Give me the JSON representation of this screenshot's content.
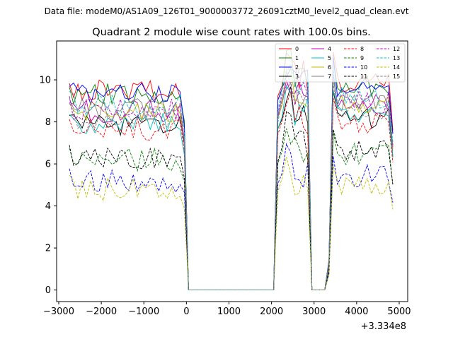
{
  "chart_data": {
    "type": "line",
    "suptitle": "Data file: modeM0/AS1A09_126T01_9000003772_26091cztM0_level2_quad_clean.evt",
    "title": "Quadrant 2 module wise count rates with 100.0s bins.",
    "xlabel": "",
    "ylabel": "",
    "x_offset_label": "+3.334e8",
    "xlim": [
      -3050,
      5200
    ],
    "ylim": [
      -0.55,
      11.85
    ],
    "xticks": [
      -3000,
      -2000,
      -1000,
      0,
      1000,
      2000,
      3000,
      4000,
      5000
    ],
    "xtick_labels": [
      "−3000",
      "−2000",
      "−1000",
      "0",
      "1000",
      "2000",
      "3000",
      "4000",
      "5000"
    ],
    "yticks": [
      0,
      2,
      4,
      6,
      8,
      10
    ],
    "ytick_labels": [
      "0",
      "2",
      "4",
      "6",
      "8",
      "10"
    ],
    "legend_position": "top-right",
    "segments": [
      {
        "start": -2750,
        "end": -150,
        "step": 100
      },
      {
        "start": 2150,
        "end": 2850,
        "step": 100
      },
      {
        "start": 3450,
        "end": 4850,
        "step": 100
      }
    ],
    "series": [
      {
        "name": "0",
        "color": "#ff0000",
        "style": "solid",
        "level": 9.5,
        "seed": 1
      },
      {
        "name": "1",
        "color": "#008000",
        "style": "solid",
        "level": 9.3,
        "seed": 2
      },
      {
        "name": "2",
        "color": "#0000ff",
        "style": "solid",
        "level": 9.3,
        "seed": 3
      },
      {
        "name": "3",
        "color": "#000000",
        "style": "solid",
        "level": 7.9,
        "seed": 4
      },
      {
        "name": "4",
        "color": "#bf00bf",
        "style": "solid",
        "level": 8.5,
        "seed": 5
      },
      {
        "name": "5",
        "color": "#00bfbf",
        "style": "solid",
        "level": 7.9,
        "seed": 6
      },
      {
        "name": "6",
        "color": "#bfbf00",
        "style": "solid",
        "level": 8.4,
        "seed": 7
      },
      {
        "name": "7",
        "color": "#808080",
        "style": "solid",
        "level": 8.6,
        "seed": 8
      },
      {
        "name": "8",
        "color": "#ff0000",
        "style": "dashed",
        "level": 7.6,
        "seed": 9
      },
      {
        "name": "9",
        "color": "#008000",
        "style": "dashed",
        "level": 6.2,
        "seed": 10
      },
      {
        "name": "10",
        "color": "#0000ff",
        "style": "dashed",
        "level": 5.2,
        "seed": 11
      },
      {
        "name": "11",
        "color": "#000000",
        "style": "dashed",
        "level": 6.3,
        "seed": 12
      },
      {
        "name": "12",
        "color": "#bf00bf",
        "style": "dashed",
        "level": 8.6,
        "seed": 13
      },
      {
        "name": "13",
        "color": "#00bfbf",
        "style": "dashed",
        "level": 8.8,
        "seed": 14
      },
      {
        "name": "14",
        "color": "#bfbf00",
        "style": "dashed",
        "level": 4.8,
        "seed": 15
      },
      {
        "name": "15",
        "color": "#808080",
        "style": "dashed",
        "level": 8.2,
        "seed": 16
      }
    ]
  }
}
